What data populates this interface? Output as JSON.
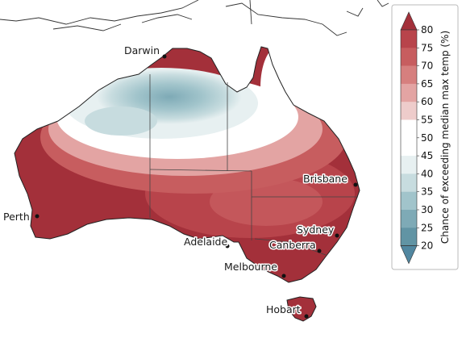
{
  "cities": [
    {
      "name": "Darwin"
    },
    {
      "name": "Perth"
    },
    {
      "name": "Adelaide"
    },
    {
      "name": "Melbourne"
    },
    {
      "name": "Canberra"
    },
    {
      "name": "Sydney"
    },
    {
      "name": "Brisbane"
    },
    {
      "name": "Hobart"
    }
  ],
  "colorbar": {
    "title": "Chance of exceeding median max temp (%)",
    "ticks": [
      "20",
      "25",
      "30",
      "35",
      "40",
      "45",
      "50",
      "55",
      "60",
      "65",
      "70",
      "75",
      "80"
    ],
    "colors": {
      "above_80": "#a3303a",
      "75_80": "#b8444b",
      "70_75": "#c75d5f",
      "65_70": "#d67f7e",
      "60_65": "#e3a4a3",
      "55_60": "#eecccb",
      "50_55": "#ffffff",
      "45_50": "#ffffff",
      "40_45": "#e7f0f1",
      "35_40": "#c7dcdf",
      "30_35": "#a1c4cb",
      "25_30": "#7eaab6",
      "20_25": "#6194a4",
      "below_20": "#5187a0"
    }
  }
}
